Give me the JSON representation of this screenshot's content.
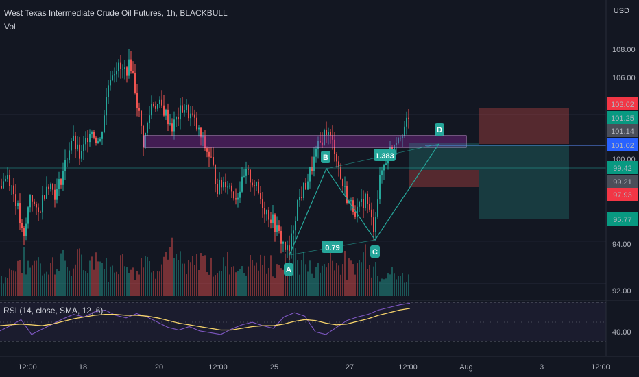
{
  "header": {
    "title": "West Texas Intermediate Crude Oil Futures, 1h, BLACKBULL",
    "sub": "Vol",
    "currency": "USD"
  },
  "rsi_label": "RSI (14, close, SMA, 12, 6)",
  "colors": {
    "bg": "#131722",
    "up": "#26a69a",
    "down": "#ef5350",
    "rsi": "#7e57c2",
    "rsi_ma": "#f7d46b",
    "zone": "#9c27b0",
    "harmonic": "#26a69a"
  },
  "chart_data": {
    "type": "candlestick",
    "symbol": "West Texas Intermediate Crude Oil Futures",
    "interval": "1h",
    "ylim": [
      90.5,
      110
    ],
    "y_ticks": [
      92,
      94,
      100,
      106,
      108
    ],
    "x_ticks": [
      "12:00",
      "18",
      "20",
      "12:00",
      "25",
      "27",
      "12:00",
      "Aug",
      "3",
      "12:00"
    ],
    "price_path": [
      [
        0,
        96.6
      ],
      [
        12,
        97.2
      ],
      [
        25,
        95.8
      ],
      [
        35,
        93.9
      ],
      [
        45,
        96.4
      ],
      [
        55,
        95.1
      ],
      [
        70,
        96.9
      ],
      [
        82,
        96.2
      ],
      [
        95,
        97.6
      ],
      [
        105,
        98.9
      ],
      [
        118,
        97.9
      ],
      [
        132,
        99.4
      ],
      [
        146,
        98.6
      ],
      [
        160,
        101.8
      ],
      [
        170,
        102.3
      ],
      [
        180,
        102.0
      ],
      [
        192,
        102.4
      ],
      [
        200,
        100.7
      ],
      [
        210,
        98.6
      ],
      [
        222,
        100.6
      ],
      [
        238,
        100.3
      ],
      [
        252,
        99.4
      ],
      [
        268,
        100.4
      ],
      [
        282,
        99.8
      ],
      [
        296,
        98.7
      ],
      [
        308,
        97.9
      ],
      [
        318,
        96.5
      ],
      [
        330,
        96.9
      ],
      [
        345,
        96.1
      ],
      [
        360,
        97.2
      ],
      [
        372,
        96.7
      ],
      [
        386,
        95.6
      ],
      [
        398,
        95.0
      ],
      [
        410,
        94.1
      ],
      [
        422,
        93.4
      ],
      [
        434,
        95.8
      ],
      [
        448,
        96.8
      ],
      [
        462,
        98.2
      ],
      [
        476,
        99.3
      ],
      [
        489,
        98.4
      ],
      [
        498,
        96.9
      ],
      [
        510,
        95.8
      ],
      [
        522,
        95.4
      ],
      [
        534,
        96.1
      ],
      [
        545,
        94.6
      ],
      [
        556,
        97.2
      ],
      [
        566,
        98.1
      ],
      [
        578,
        98.9
      ],
      [
        588,
        99.3
      ],
      [
        597,
        99.7
      ]
    ],
    "volume_profile": [
      6,
      9,
      12,
      10,
      14,
      8,
      11,
      13,
      9,
      12,
      10,
      15,
      11,
      8,
      13,
      12,
      9,
      14,
      10,
      12,
      16,
      12,
      9,
      11,
      14,
      10,
      8,
      12,
      11,
      9,
      13,
      10,
      12,
      8,
      11,
      17,
      12,
      10,
      9,
      12,
      14,
      11,
      9,
      12,
      16,
      10,
      8,
      7,
      6,
      5
    ],
    "rsi": [
      42,
      48,
      55,
      38,
      44,
      50,
      56,
      61,
      58,
      64,
      66,
      60,
      57,
      62,
      58,
      52,
      46,
      43,
      47,
      42,
      40,
      38,
      44,
      49,
      52,
      48,
      45,
      58,
      63,
      59,
      41,
      38,
      46,
      54,
      58,
      61,
      66,
      69,
      72,
      74
    ],
    "rsi_ma": [
      48,
      49,
      50,
      49,
      48,
      50,
      53,
      56,
      58,
      60,
      61,
      61,
      60,
      60,
      59,
      57,
      54,
      51,
      49,
      47,
      45,
      43,
      43,
      45,
      47,
      48,
      48,
      50,
      53,
      55,
      54,
      51,
      49,
      50,
      53,
      56,
      60,
      63,
      66,
      68
    ],
    "harmonic_pattern": {
      "points": [
        {
          "label": "A",
          "price": 93.3
        },
        {
          "label": "B",
          "price": 99.4
        },
        {
          "label": "C",
          "price": 94.6
        },
        {
          "label": "D",
          "price": 101.14
        }
      ],
      "ratios": [
        "0.79",
        "1.383"
      ]
    },
    "price_labels": [
      {
        "text": "103.62",
        "kind": "red"
      },
      {
        "text": "101.25",
        "kind": "green"
      },
      {
        "text": "101.14",
        "kind": "gray"
      },
      {
        "text": "101.02",
        "kind": "blue"
      },
      {
        "text": "99.42",
        "kind": "green"
      },
      {
        "text": "99.21",
        "kind": "gray"
      },
      {
        "text": "97.93",
        "kind": "red"
      },
      {
        "text": "95.77",
        "kind": "green"
      }
    ],
    "rsi_ticks": [
      "40.00"
    ]
  }
}
